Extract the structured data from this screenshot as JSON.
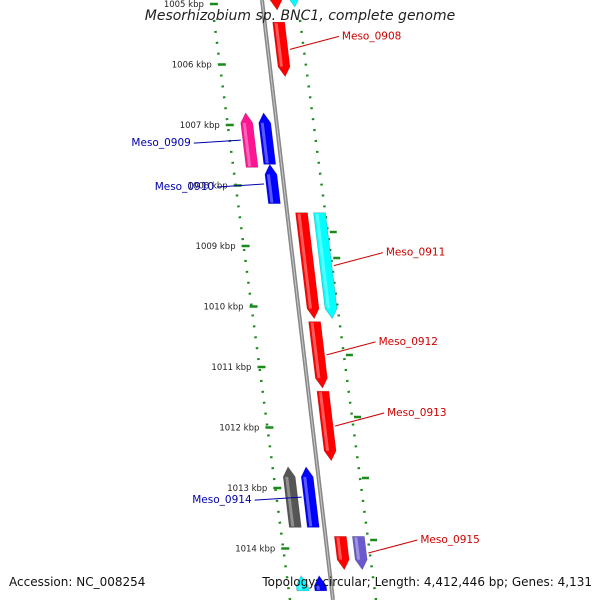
{
  "genome": {
    "title": "Mesorhizobium sp. BNC1, complete genome",
    "accession_label": "Accession: NC_008254",
    "summary_label": "Topology: circular; Length: 4,412,446 bp; Genes: 4,131"
  },
  "colors": {
    "backbone": "#888888",
    "gc_ticks": "#1a8a1a",
    "forward_label": "#cc0000",
    "reverse_label": "#0000aa"
  },
  "ruler": [
    {
      "label": "1005 kbp",
      "kbp": 1005
    },
    {
      "label": "1006 kbp",
      "kbp": 1006
    },
    {
      "label": "1007 kbp",
      "kbp": 1007
    },
    {
      "label": "1008 kbp",
      "kbp": 1008
    },
    {
      "label": "1009 kbp",
      "kbp": 1009
    },
    {
      "label": "1010 kbp",
      "kbp": 1010
    },
    {
      "label": "1011 kbp",
      "kbp": 1011
    },
    {
      "label": "1012 kbp",
      "kbp": 1012
    },
    {
      "label": "1013 kbp",
      "kbp": 1013
    },
    {
      "label": "1014 kbp",
      "kbp": 1014
    }
  ],
  "genes": [
    {
      "id": "g1",
      "start": 1004.6,
      "end": 1005.1,
      "strand": "forward",
      "lane": 0,
      "color": "#ff0000",
      "label": ""
    },
    {
      "id": "g2",
      "start": 1004.6,
      "end": 1005.05,
      "strand": "forward",
      "lane": 1,
      "color": "#00ffff",
      "label": ""
    },
    {
      "id": "g3",
      "start": 1005.3,
      "end": 1006.2,
      "strand": "forward",
      "lane": 0,
      "color": "#ff0000",
      "label": "Meso_0908"
    },
    {
      "id": "g4",
      "start": 1006.8,
      "end": 1007.7,
      "strand": "reverse",
      "lane": 1,
      "color": "#ff1493",
      "label": "Meso_0909"
    },
    {
      "id": "g5",
      "start": 1006.8,
      "end": 1007.65,
      "strand": "reverse",
      "lane": 0,
      "color": "#0000ff",
      "label": ""
    },
    {
      "id": "g6",
      "start": 1007.65,
      "end": 1008.3,
      "strand": "reverse",
      "lane": 0,
      "color": "#0000ff",
      "label": "Meso_0910"
    },
    {
      "id": "g7",
      "start": 1008.45,
      "end": 1010.2,
      "strand": "forward",
      "lane": 0,
      "color": "#ff0000",
      "label": ""
    },
    {
      "id": "g8",
      "start": 1008.45,
      "end": 1010.2,
      "strand": "forward",
      "lane": 1,
      "color": "#00ffff",
      "label": "Meso_0911"
    },
    {
      "id": "g9",
      "start": 1010.25,
      "end": 1011.35,
      "strand": "forward",
      "lane": 0,
      "color": "#ff0000",
      "label": "Meso_0912"
    },
    {
      "id": "g10",
      "start": 1011.4,
      "end": 1012.55,
      "strand": "forward",
      "lane": 0,
      "color": "#ff0000",
      "label": "Meso_0913"
    },
    {
      "id": "g11",
      "start": 1012.65,
      "end": 1013.65,
      "strand": "reverse",
      "lane": 1,
      "color": "#555555",
      "label": ""
    },
    {
      "id": "g12",
      "start": 1012.65,
      "end": 1013.65,
      "strand": "reverse",
      "lane": 0,
      "color": "#0000ff",
      "label": "Meso_0914"
    },
    {
      "id": "g13",
      "start": 1013.8,
      "end": 1014.35,
      "strand": "forward",
      "lane": 0,
      "color": "#ff0000",
      "label": ""
    },
    {
      "id": "g14",
      "start": 1013.8,
      "end": 1014.35,
      "strand": "forward",
      "lane": 1,
      "color": "#6a5acd",
      "label": "Meso_0915"
    },
    {
      "id": "g15",
      "start": 1014.45,
      "end": 1014.7,
      "strand": "reverse",
      "lane": 0,
      "color": "#0000ff",
      "label": ""
    },
    {
      "id": "g16",
      "start": 1014.45,
      "end": 1014.7,
      "strand": "reverse",
      "lane": 1,
      "color": "#00ffff",
      "label": ""
    }
  ]
}
